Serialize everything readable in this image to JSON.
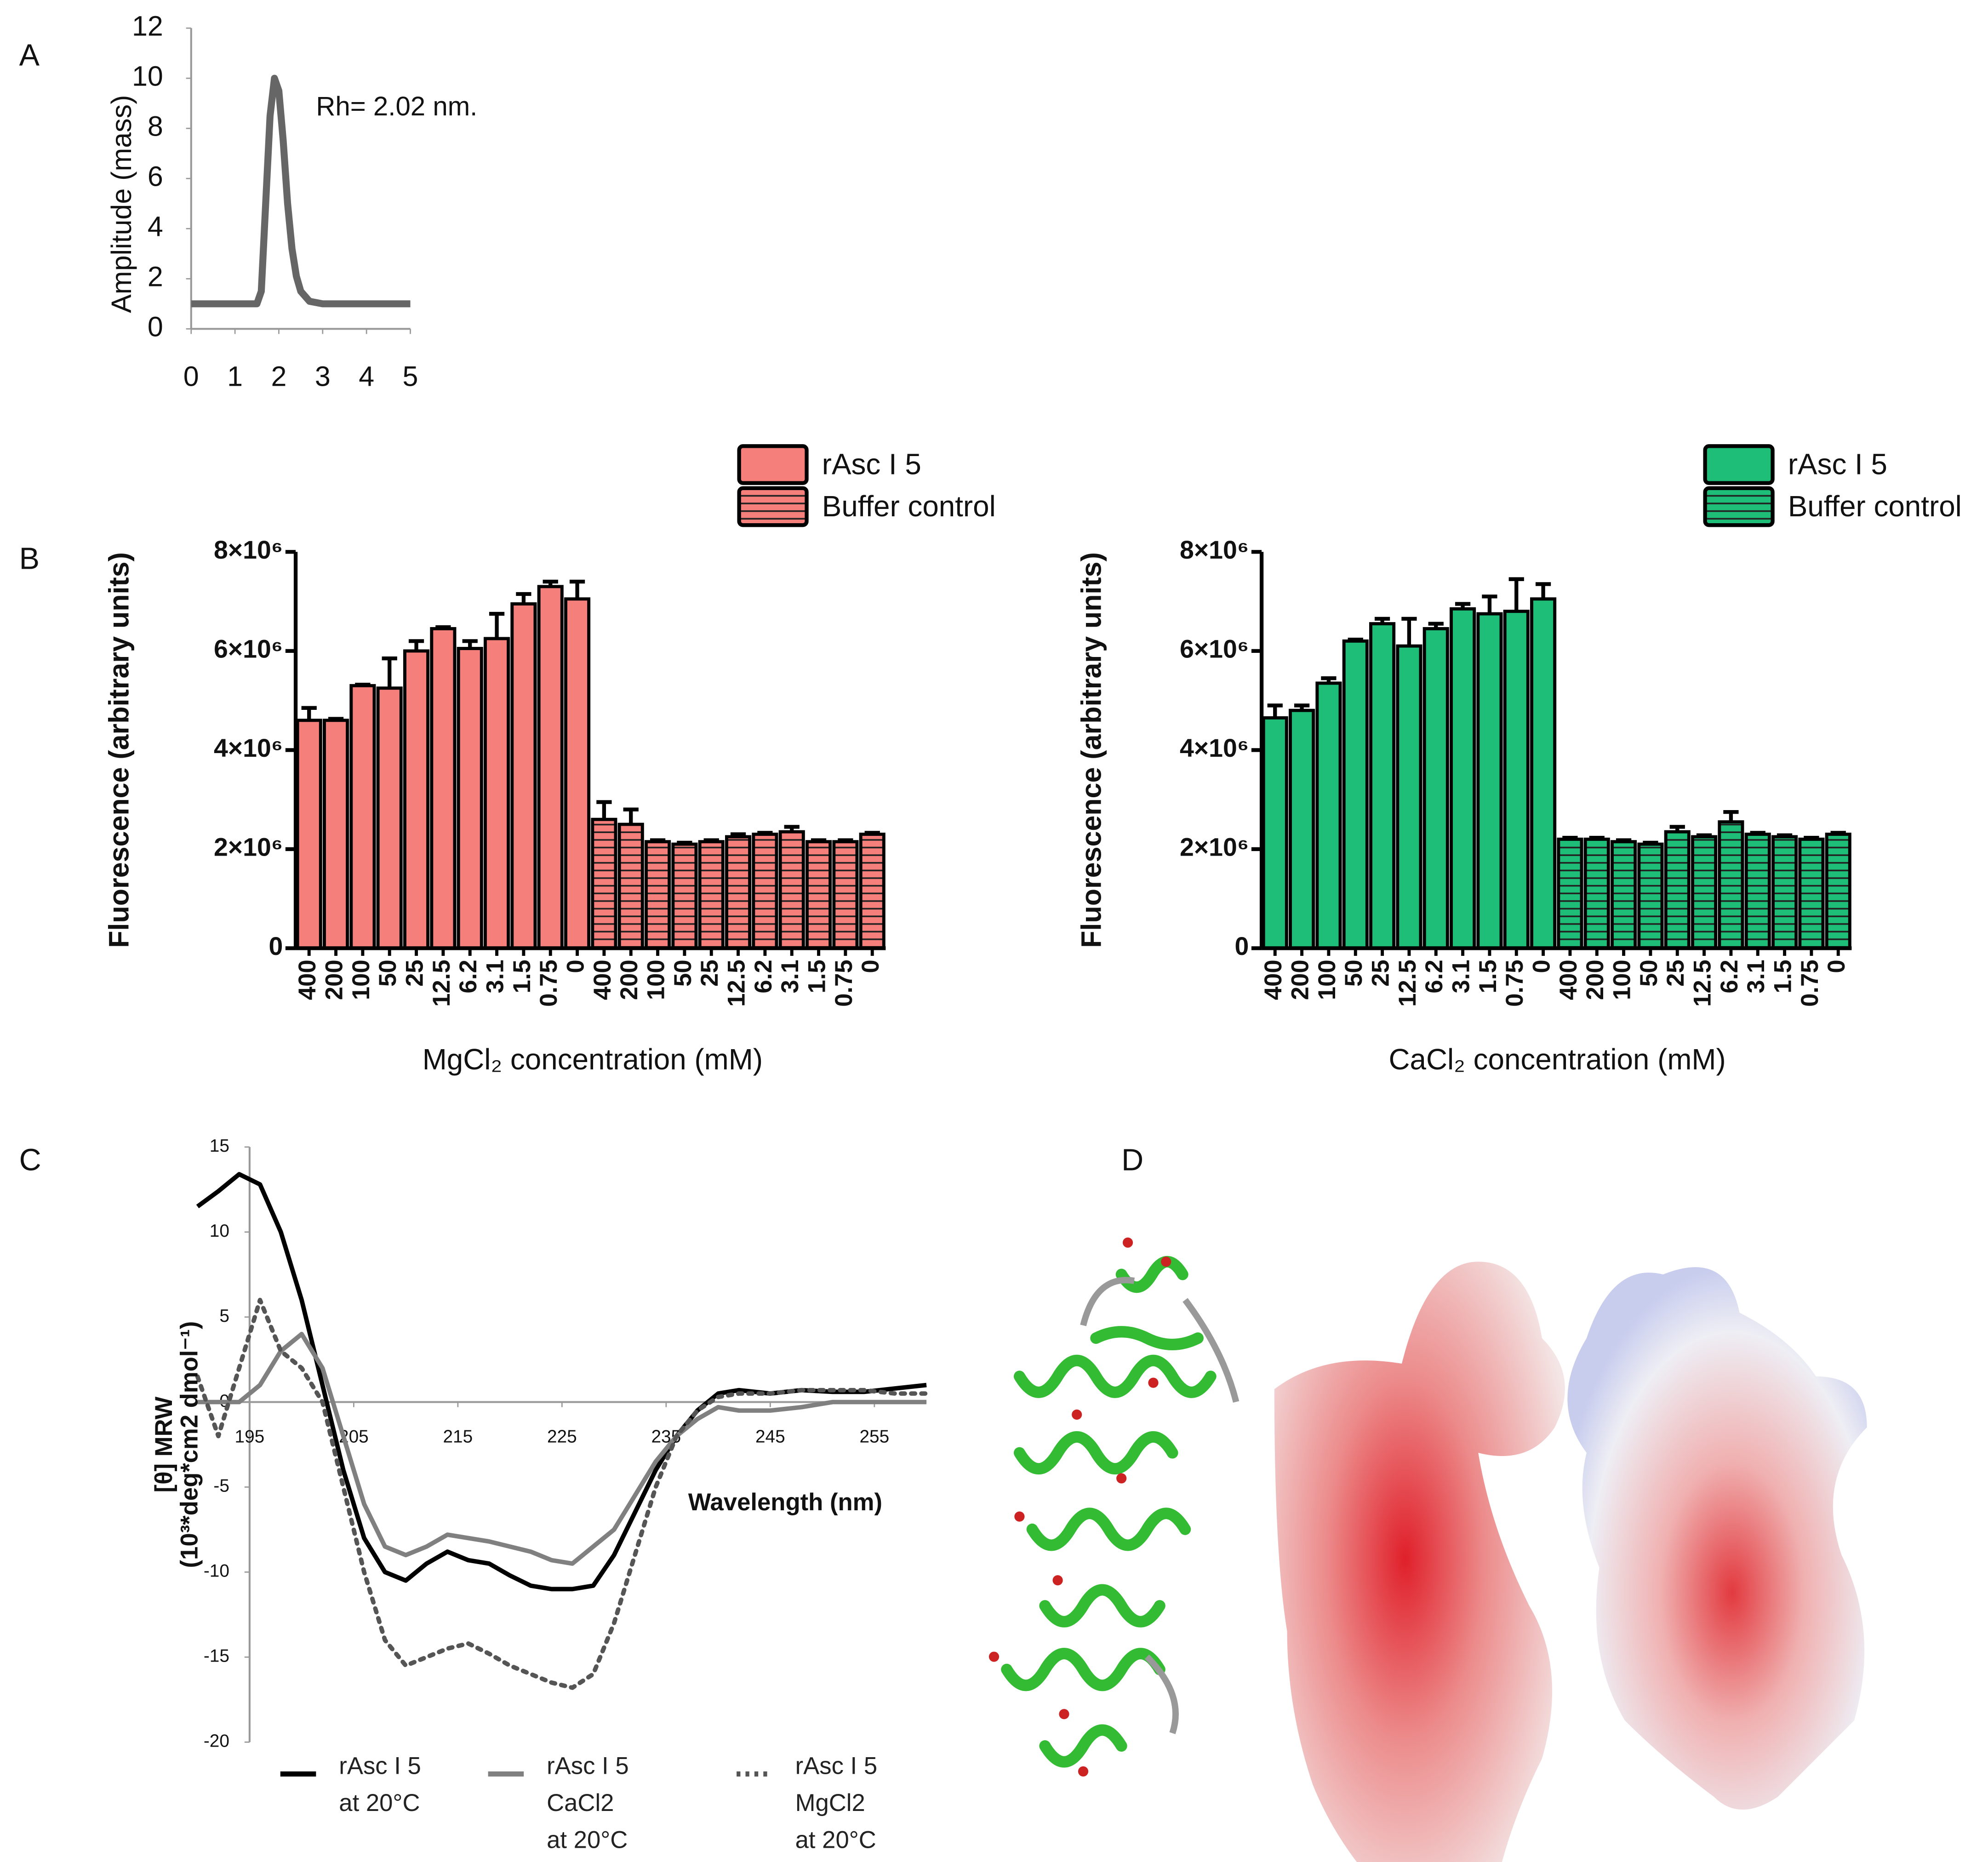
{
  "panel_labels": [
    "A",
    "B",
    "C",
    "D"
  ],
  "chart_data": [
    {
      "type": "line",
      "ylabel": "Amplitude (mass)",
      "annotation": "Rh= 2.02 nm.",
      "color": "#666666",
      "x": [
        0,
        0.5,
        1,
        1.5,
        1.6,
        1.7,
        1.8,
        1.9,
        2.0,
        2.1,
        2.2,
        2.3,
        2.4,
        2.5,
        2.7,
        3,
        3.5,
        4,
        4.5,
        5
      ],
      "values": [
        1,
        1,
        1,
        1,
        1.5,
        5,
        8.5,
        10,
        9.5,
        7.5,
        5,
        3.2,
        2.1,
        1.5,
        1.1,
        1,
        1,
        1,
        1,
        1
      ],
      "xlim": [
        0,
        5
      ],
      "ylim": [
        0,
        12
      ],
      "xticks": [
        0,
        1,
        2,
        3,
        4,
        5
      ],
      "yticks": [
        0,
        2,
        4,
        6,
        8,
        10,
        12
      ]
    },
    {
      "type": "bar",
      "ylabel": "Fluorescence (arbitrary units)",
      "xlabel": "MgCl₂ concentration (mM)",
      "categories": [
        "400",
        "200",
        "100",
        "50",
        "25",
        "12.5",
        "6.2",
        "3.1",
        "1.5",
        "0.75",
        "0",
        "400",
        "200",
        "100",
        "50",
        "25",
        "12.5",
        "6.2",
        "3.1",
        "1.5",
        "0.75",
        "0"
      ],
      "series": [
        {
          "name": "rAsc I 5",
          "color": "#f47f7b",
          "hatch": false,
          "values": [
            4600000,
            4600000,
            5300000,
            5250000,
            6000000,
            6450000,
            6050000,
            6250000,
            6950000,
            7300000,
            7050000,
            null,
            null,
            null,
            null,
            null,
            null,
            null,
            null,
            null,
            null,
            null
          ],
          "errors": [
            250000,
            30000,
            20000,
            600000,
            200000,
            30000,
            150000,
            500000,
            200000,
            100000,
            350000,
            null,
            null,
            null,
            null,
            null,
            null,
            null,
            null,
            null,
            null,
            null
          ]
        },
        {
          "name": "Buffer control",
          "color": "#f47f7b",
          "hatch": true,
          "values": [
            null,
            null,
            null,
            null,
            null,
            null,
            null,
            null,
            null,
            null,
            null,
            2600000,
            2500000,
            2150000,
            2100000,
            2150000,
            2250000,
            2300000,
            2350000,
            2150000,
            2150000,
            2300000
          ],
          "errors": [
            null,
            null,
            null,
            null,
            null,
            null,
            null,
            null,
            null,
            null,
            null,
            350000,
            300000,
            30000,
            30000,
            30000,
            50000,
            30000,
            100000,
            30000,
            30000,
            30000
          ]
        }
      ],
      "ylim": [
        0,
        8000000
      ],
      "yticks": [
        0,
        {
          "value": 2000000,
          "label": "2×10⁶"
        },
        {
          "value": 4000000,
          "label": "4×10⁶"
        },
        {
          "value": 6000000,
          "label": "6×10⁶"
        },
        {
          "value": 8000000,
          "label": "8×10⁶"
        }
      ]
    },
    {
      "type": "bar",
      "ylabel": "Fluorescence (arbitrary units)",
      "xlabel": "CaCl₂ concentration (mM)",
      "categories": [
        "400",
        "200",
        "100",
        "50",
        "25",
        "12.5",
        "6.2",
        "3.1",
        "1.5",
        "0.75",
        "0",
        "400",
        "200",
        "100",
        "50",
        "25",
        "12.5",
        "6.2",
        "3.1",
        "1.5",
        "0.75",
        "0"
      ],
      "series": [
        {
          "name": "rAsc I 5",
          "color": "#1ebd78",
          "hatch": false,
          "values": [
            4650000,
            4800000,
            5350000,
            6200000,
            6550000,
            6100000,
            6450000,
            6850000,
            6750000,
            6800000,
            7050000,
            null,
            null,
            null,
            null,
            null,
            null,
            null,
            null,
            null,
            null,
            null
          ],
          "errors": [
            250000,
            100000,
            100000,
            30000,
            100000,
            550000,
            100000,
            100000,
            350000,
            650000,
            300000,
            null,
            null,
            null,
            null,
            null,
            null,
            null,
            null,
            null,
            null,
            null
          ]
        },
        {
          "name": "Buffer control",
          "color": "#1ebd78",
          "hatch": true,
          "values": [
            null,
            null,
            null,
            null,
            null,
            null,
            null,
            null,
            null,
            null,
            null,
            2200000,
            2200000,
            2150000,
            2100000,
            2350000,
            2250000,
            2550000,
            2300000,
            2250000,
            2200000,
            2300000
          ],
          "errors": [
            null,
            null,
            null,
            null,
            null,
            null,
            null,
            null,
            null,
            null,
            null,
            30000,
            30000,
            30000,
            30000,
            100000,
            30000,
            200000,
            30000,
            30000,
            30000,
            30000
          ]
        }
      ],
      "ylim": [
        0,
        8000000
      ],
      "yticks": [
        0,
        {
          "value": 2000000,
          "label": "2×10⁶"
        },
        {
          "value": 4000000,
          "label": "4×10⁶"
        },
        {
          "value": 6000000,
          "label": "6×10⁶"
        },
        {
          "value": 8000000,
          "label": "8×10⁶"
        }
      ]
    },
    {
      "type": "line",
      "ylabel": [
        "[θ] MRW",
        "(10³*deg*cm2 dmol⁻¹)"
      ],
      "xlabel": "Wavelength (nm)",
      "x": [
        190,
        192,
        194,
        196,
        198,
        200,
        202,
        204,
        206,
        208,
        210,
        212,
        214,
        216,
        218,
        220,
        222,
        224,
        226,
        228,
        230,
        232,
        234,
        236,
        238,
        240,
        242,
        245,
        248,
        251,
        254,
        257,
        260
      ],
      "series": [
        {
          "name": "rAsc I 5 at 20°C",
          "color": "#000000",
          "style": "solid",
          "values": [
            11.5,
            12.4,
            13.4,
            12.8,
            10,
            6,
            1,
            -4,
            -8,
            -10,
            -10.5,
            -9.5,
            -8.8,
            -9.3,
            -9.5,
            -10.2,
            -10.8,
            -11,
            -11,
            -10.8,
            -9,
            -6.5,
            -4,
            -2,
            -0.5,
            0.5,
            0.7,
            0.5,
            0.7,
            0.6,
            0.6,
            0.8,
            1
          ]
        },
        {
          "name": "rAsc I 5 CaCl2 at 20°C",
          "color": "#808080",
          "style": "solid",
          "values": [
            0,
            0,
            0,
            1,
            3,
            4,
            2,
            -2,
            -6,
            -8.5,
            -9,
            -8.5,
            -7.8,
            -8,
            -8.2,
            -8.5,
            -8.8,
            -9.3,
            -9.5,
            -8.5,
            -7.5,
            -5.5,
            -3.5,
            -2,
            -1,
            -0.3,
            -0.5,
            -0.5,
            -0.3,
            0,
            0,
            0,
            0
          ]
        },
        {
          "name": "rAsc I 5 MgCl2 at 20°C",
          "color": "#555555",
          "style": "dotted",
          "values": [
            1.5,
            -2,
            2,
            6,
            3,
            2,
            0,
            -5,
            -10,
            -14,
            -15.5,
            -15,
            -14.5,
            -14.2,
            -14.8,
            -15.5,
            -16,
            -16.5,
            -16.8,
            -16,
            -13,
            -9,
            -5,
            -2,
            -0.5,
            0.3,
            0.5,
            0.5,
            0.7,
            0.7,
            0.7,
            0.5,
            0.5
          ]
        }
      ],
      "xlim": [
        190,
        260
      ],
      "ylim": [
        -20,
        15
      ],
      "xticks": [
        195,
        205,
        215,
        225,
        235,
        245,
        255
      ],
      "yticks": [
        -20,
        -15,
        -10,
        -5,
        0,
        5,
        10,
        15
      ]
    }
  ]
}
